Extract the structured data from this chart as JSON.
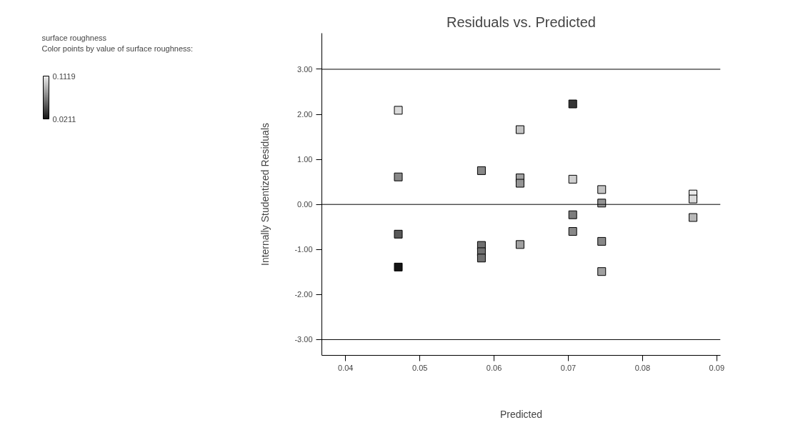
{
  "chart_data": {
    "type": "scatter",
    "title": "Residuals vs. Predicted",
    "xlabel": "Predicted",
    "ylabel": "Internally Studentized Residuals",
    "clabel": "Color points by value of surface roughness:",
    "annotations": [
      "surface roughness"
    ],
    "x": [
      0.0471,
      0.0471,
      0.0471,
      0.0471,
      0.0583,
      0.0583,
      0.0583,
      0.0583,
      0.0635,
      0.0635,
      0.0635,
      0.0635,
      0.0706,
      0.0706,
      0.0706,
      0.0706,
      0.0745,
      0.0745,
      0.0745,
      0.0745,
      0.0868,
      0.0868,
      0.0868
    ],
    "values": [
      2.09,
      0.61,
      -0.66,
      -1.39,
      0.75,
      -0.91,
      -1.05,
      -1.19,
      1.66,
      0.59,
      0.47,
      -0.89,
      2.23,
      0.56,
      -0.23,
      -0.6,
      0.33,
      0.03,
      -0.82,
      -1.49,
      0.23,
      0.12,
      -0.29
    ],
    "cvalues": [
      0.105,
      0.07,
      0.05,
      0.0211,
      0.07,
      0.06,
      0.06,
      0.06,
      0.095,
      0.08,
      0.075,
      0.08,
      0.035,
      0.1,
      0.065,
      0.07,
      0.095,
      0.075,
      0.07,
      0.08,
      0.1119,
      0.105,
      0.09
    ],
    "clim": [
      0.0211,
      0.1119
    ],
    "cticks": [
      0.0211,
      0.1119
    ],
    "xlim": [
      0.0368,
      0.0905
    ],
    "xticks": [
      {
        "value": 0.04,
        "label": "0.04"
      },
      {
        "value": 0.05,
        "label": "0.05"
      },
      {
        "value": 0.06,
        "label": "0.06"
      },
      {
        "value": 0.07,
        "label": "0.07"
      },
      {
        "value": 0.08,
        "label": "0.08"
      },
      {
        "value": 0.09,
        "label": "0.09"
      }
    ],
    "ylim": [
      -3.35,
      3.8
    ],
    "yticks": [
      {
        "value": -3,
        "label": "-3.00"
      },
      {
        "value": -2,
        "label": "-2.00"
      },
      {
        "value": -1,
        "label": "-1.00"
      },
      {
        "value": 0,
        "label": "0.00"
      },
      {
        "value": 1,
        "label": "1.00"
      },
      {
        "value": 2,
        "label": "2.00"
      },
      {
        "value": 3,
        "label": "3.00"
      }
    ],
    "ref_lines": [
      {
        "axis": "y",
        "value": 3,
        "color": "#000000"
      },
      {
        "axis": "y",
        "value": 0,
        "color": "#000000"
      },
      {
        "axis": "y",
        "value": -3,
        "color": "#000000"
      }
    ],
    "marker": "square",
    "grid": false
  }
}
